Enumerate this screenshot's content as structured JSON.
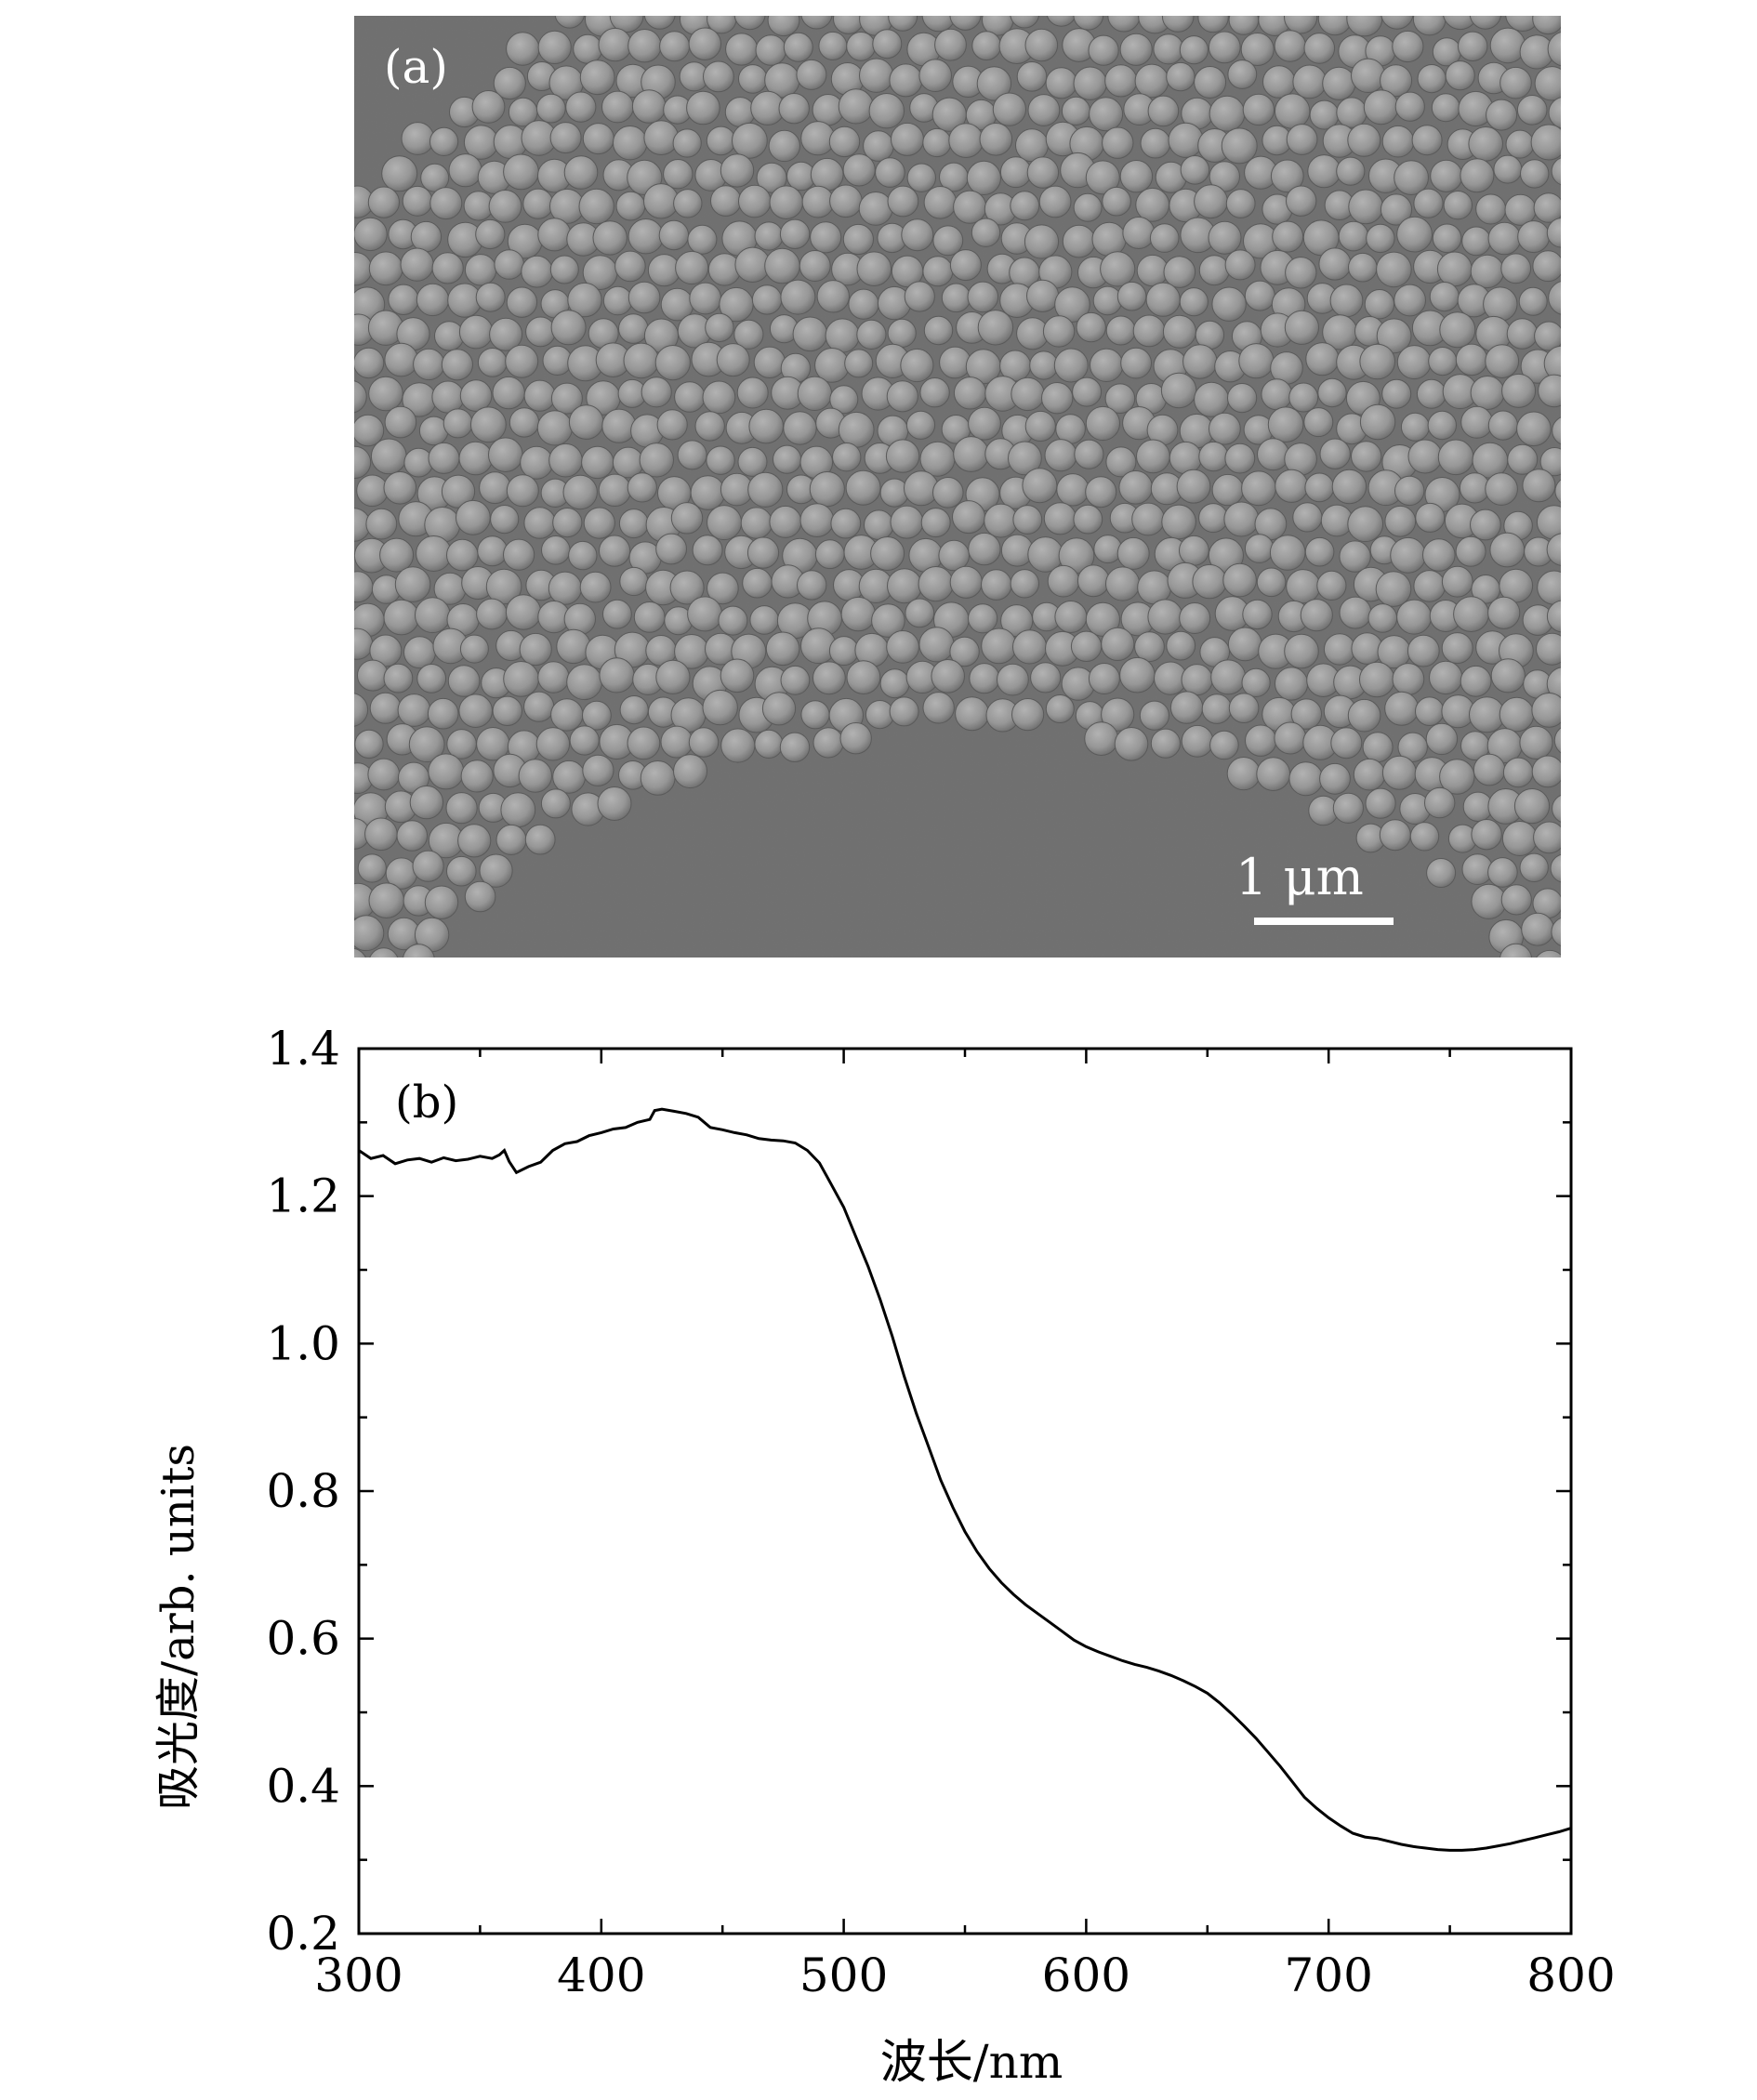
{
  "sem_image": {
    "panel_label": "(a)",
    "scale_bar_label": "1 μm",
    "colors": {
      "substrate": "#6f6f6f",
      "particle": "#9a9a9a",
      "scale_bar": "#ffffff"
    }
  },
  "chart_data": {
    "type": "line",
    "panel_label": "(b)",
    "title": "",
    "xlabel": "波长/nm",
    "ylabel": "吸光度/arb. units",
    "xlim": [
      300,
      800
    ],
    "ylim": [
      0.2,
      1.4
    ],
    "xticks": [
      300,
      400,
      500,
      600,
      700,
      800
    ],
    "yticks": [
      0.2,
      0.4,
      0.6,
      0.8,
      1.0,
      1.2,
      1.4
    ],
    "ytick_labels": [
      "0.2",
      "0.4",
      "0.6",
      "0.8",
      "1.0",
      "1.2",
      "1.4"
    ],
    "grid": false,
    "legend": "none",
    "line_color": "#000000",
    "series": [
      {
        "x": [
          300,
          305,
          310,
          315,
          320,
          325,
          330,
          335,
          340,
          345,
          350,
          355,
          358,
          360,
          362,
          365,
          370,
          375,
          380,
          385,
          390,
          395,
          400,
          405,
          410,
          415,
          420,
          422,
          425,
          430,
          435,
          440,
          445,
          450,
          455,
          460,
          465,
          470,
          475,
          480,
          485,
          490,
          495,
          500,
          505,
          510,
          515,
          520,
          525,
          530,
          535,
          540,
          545,
          550,
          555,
          560,
          565,
          570,
          575,
          580,
          585,
          590,
          595,
          600,
          605,
          610,
          615,
          620,
          625,
          630,
          635,
          640,
          645,
          650,
          655,
          660,
          665,
          670,
          675,
          680,
          685,
          690,
          695,
          700,
          705,
          710,
          715,
          720,
          725,
          730,
          735,
          740,
          745,
          750,
          755,
          760,
          765,
          770,
          775,
          780,
          785,
          790,
          795,
          800
        ],
        "y": [
          1.262,
          1.251,
          1.255,
          1.244,
          1.249,
          1.251,
          1.246,
          1.252,
          1.248,
          1.25,
          1.254,
          1.251,
          1.256,
          1.262,
          1.247,
          1.232,
          1.24,
          1.246,
          1.262,
          1.271,
          1.274,
          1.282,
          1.286,
          1.291,
          1.293,
          1.3,
          1.304,
          1.316,
          1.318,
          1.315,
          1.312,
          1.307,
          1.293,
          1.29,
          1.286,
          1.283,
          1.278,
          1.276,
          1.275,
          1.272,
          1.262,
          1.245,
          1.215,
          1.185,
          1.145,
          1.105,
          1.06,
          1.01,
          0.955,
          0.905,
          0.86,
          0.815,
          0.778,
          0.745,
          0.718,
          0.695,
          0.676,
          0.66,
          0.646,
          0.634,
          0.622,
          0.61,
          0.598,
          0.589,
          0.582,
          0.576,
          0.57,
          0.565,
          0.561,
          0.556,
          0.55,
          0.543,
          0.535,
          0.526,
          0.513,
          0.498,
          0.482,
          0.465,
          0.446,
          0.427,
          0.406,
          0.385,
          0.37,
          0.357,
          0.346,
          0.336,
          0.331,
          0.329,
          0.325,
          0.321,
          0.318,
          0.316,
          0.314,
          0.313,
          0.313,
          0.314,
          0.316,
          0.319,
          0.322,
          0.326,
          0.33,
          0.334,
          0.338,
          0.343
        ]
      }
    ]
  }
}
